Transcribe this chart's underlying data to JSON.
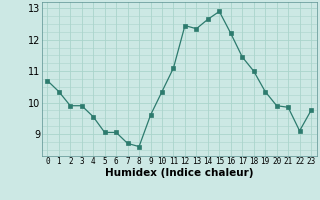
{
  "x": [
    0,
    1,
    2,
    3,
    4,
    5,
    6,
    7,
    8,
    9,
    10,
    11,
    12,
    13,
    14,
    15,
    16,
    17,
    18,
    19,
    20,
    21,
    22,
    23
  ],
  "y": [
    10.7,
    10.35,
    9.9,
    9.9,
    9.55,
    9.05,
    9.05,
    8.7,
    8.6,
    9.6,
    10.35,
    11.1,
    12.45,
    12.35,
    12.65,
    12.9,
    12.2,
    11.45,
    11.0,
    10.35,
    9.9,
    9.85,
    9.1,
    9.75
  ],
  "xlabel": "Humidex (Indice chaleur)",
  "xlim": [
    -0.5,
    23.5
  ],
  "ylim": [
    8.3,
    13.2
  ],
  "yticks": [
    9,
    10,
    11,
    12,
    13
  ],
  "xticks": [
    0,
    1,
    2,
    3,
    4,
    5,
    6,
    7,
    8,
    9,
    10,
    11,
    12,
    13,
    14,
    15,
    16,
    17,
    18,
    19,
    20,
    21,
    22,
    23
  ],
  "line_color": "#2d7b6e",
  "marker_color": "#2d7b6e",
  "bg_color": "#cce8e4",
  "grid_color": "#aad4cc",
  "xlabel_fontsize": 7.5,
  "xtick_fontsize": 5.5,
  "ytick_fontsize": 7.0
}
